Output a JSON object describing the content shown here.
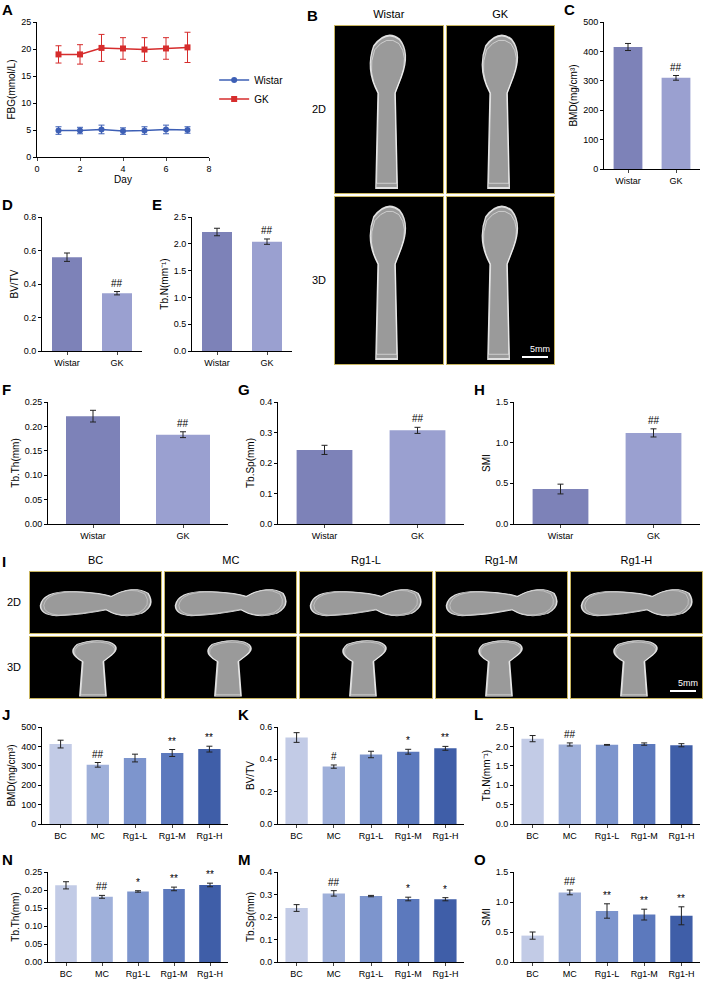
{
  "chart_data": [
    {
      "panel": "A",
      "type": "line",
      "x_label": "Day",
      "y_label": "FBG(mmol/L)",
      "x": [
        1,
        2,
        3,
        4,
        5,
        6,
        7
      ],
      "xlim": [
        0,
        8
      ],
      "xticks": [
        0,
        2,
        4,
        6,
        8
      ],
      "ylim": [
        0,
        25
      ],
      "yticks": [
        0,
        5,
        10,
        15,
        20,
        25
      ],
      "legend": "right",
      "series": [
        {
          "name": "Wistar",
          "color": "#3d5fb5",
          "marker": "circle",
          "values": [
            4.9,
            4.9,
            5.1,
            4.8,
            4.9,
            5.1,
            5.0
          ],
          "errors": [
            0.7,
            0.6,
            0.8,
            0.6,
            0.7,
            0.8,
            0.6
          ]
        },
        {
          "name": "GK",
          "color": "#d62d2d",
          "marker": "square",
          "values": [
            19.0,
            19.0,
            20.2,
            20.1,
            19.9,
            20.1,
            20.3
          ],
          "errors": [
            1.6,
            1.8,
            2.5,
            2.0,
            2.2,
            2.0,
            2.8
          ]
        }
      ]
    },
    {
      "panel": "C",
      "type": "bar",
      "y_label": "BMD(mg/cm³)",
      "categories": [
        "Wistar",
        "GK"
      ],
      "values": [
        415,
        310
      ],
      "errors": [
        12,
        8
      ],
      "colors": [
        "#7d82b8",
        "#9aa0d0"
      ],
      "ylim": [
        0,
        500
      ],
      "yticks": [
        0,
        100,
        200,
        300,
        400,
        500
      ],
      "annotations": [
        {
          "category": "GK",
          "text": "##"
        }
      ]
    },
    {
      "panel": "D",
      "type": "bar",
      "y_label": "BV/TV",
      "categories": [
        "Wistar",
        "GK"
      ],
      "values": [
        0.56,
        0.345
      ],
      "errors": [
        0.025,
        0.01
      ],
      "colors": [
        "#7d82b8",
        "#9aa0d0"
      ],
      "ylim": [
        0,
        0.8
      ],
      "yticks": [
        {
          "value": 0,
          "label": "0.0"
        },
        0.2,
        0.4,
        0.6,
        0.8
      ],
      "annotations": [
        {
          "category": "GK",
          "text": "##"
        }
      ]
    },
    {
      "panel": "E",
      "type": "bar",
      "y_label": "Tb.N(mm⁻¹)",
      "categories": [
        "Wistar",
        "GK"
      ],
      "values": [
        2.22,
        2.04
      ],
      "errors": [
        0.07,
        0.05
      ],
      "colors": [
        "#7d82b8",
        "#9aa0d0"
      ],
      "ylim": [
        0,
        2.5
      ],
      "yticks": [
        {
          "value": 0,
          "label": "0.0"
        },
        0.5,
        {
          "value": 1,
          "label": "1.0"
        },
        1.5,
        {
          "value": 2,
          "label": "2.0"
        },
        2.5
      ],
      "annotations": [
        {
          "category": "GK",
          "text": "##"
        }
      ]
    },
    {
      "panel": "F",
      "type": "bar",
      "y_label": "Tb.Th(mm)",
      "categories": [
        "Wistar",
        "GK"
      ],
      "values": [
        0.221,
        0.183
      ],
      "errors": [
        0.012,
        0.006
      ],
      "colors": [
        "#7d82b8",
        "#9aa0d0"
      ],
      "ylim": [
        0,
        0.25
      ],
      "yticks": [
        {
          "value": 0,
          "label": "0.00"
        },
        0.05,
        {
          "value": 0.1,
          "label": "0.10"
        },
        0.15,
        {
          "value": 0.2,
          "label": "0.20"
        },
        0.25
      ],
      "annotations": [
        {
          "category": "GK",
          "text": "##"
        }
      ]
    },
    {
      "panel": "G",
      "type": "bar",
      "y_label": "Tb.Sp(mm)",
      "categories": [
        "Wistar",
        "GK"
      ],
      "values": [
        0.243,
        0.307
      ],
      "errors": [
        0.015,
        0.01
      ],
      "colors": [
        "#7d82b8",
        "#9aa0d0"
      ],
      "ylim": [
        0,
        0.4
      ],
      "yticks": [
        {
          "value": 0,
          "label": "0.0"
        },
        0.1,
        0.2,
        0.3,
        0.4
      ],
      "annotations": [
        {
          "category": "GK",
          "text": "##"
        }
      ]
    },
    {
      "panel": "H",
      "type": "bar",
      "y_label": "SMI",
      "categories": [
        "Wistar",
        "GK"
      ],
      "values": [
        0.43,
        1.12
      ],
      "errors": [
        0.06,
        0.05
      ],
      "colors": [
        "#7d82b8",
        "#9aa0d0"
      ],
      "ylim": [
        0,
        1.5
      ],
      "yticks": [
        {
          "value": 0,
          "label": "0.0"
        },
        0.5,
        {
          "value": 1,
          "label": "1.0"
        },
        1.5
      ],
      "annotations": [
        {
          "category": "GK",
          "text": "##"
        }
      ]
    },
    {
      "panel": "J",
      "type": "bar",
      "y_label": "BMD(mg/cm³)",
      "categories": [
        "BC",
        "MC",
        "Rg1-L",
        "Rg1-M",
        "Rg1-H"
      ],
      "values": [
        412,
        305,
        340,
        366,
        386
      ],
      "errors": [
        20,
        12,
        20,
        18,
        15
      ],
      "colors": [
        "#c2cbe6",
        "#9fb0da",
        "#7d95cd",
        "#5c79bd",
        "#3f5ea8"
      ],
      "ylim": [
        0,
        500
      ],
      "yticks": [
        0,
        100,
        200,
        300,
        400,
        500
      ],
      "annotations": [
        {
          "category": "MC",
          "text": "##"
        },
        {
          "category": "Rg1-M",
          "text": "**"
        },
        {
          "category": "Rg1-H",
          "text": "**"
        }
      ]
    },
    {
      "panel": "K",
      "type": "bar",
      "y_label": "BV/TV",
      "categories": [
        "BC",
        "MC",
        "Rg1-L",
        "Rg1-M",
        "Rg1-H"
      ],
      "values": [
        0.535,
        0.355,
        0.43,
        0.447,
        0.468
      ],
      "errors": [
        0.03,
        0.01,
        0.02,
        0.015,
        0.012
      ],
      "colors": [
        "#c2cbe6",
        "#9fb0da",
        "#7d95cd",
        "#5c79bd",
        "#3f5ea8"
      ],
      "ylim": [
        0,
        0.6
      ],
      "yticks": [
        {
          "value": 0,
          "label": "0.0"
        },
        0.2,
        0.4,
        0.6
      ],
      "annotations": [
        {
          "category": "MC",
          "text": "#"
        },
        {
          "category": "Rg1-M",
          "text": "*"
        },
        {
          "category": "Rg1-H",
          "text": "**"
        }
      ]
    },
    {
      "panel": "L",
      "type": "bar",
      "y_label": "Tb.N(mm⁻¹)",
      "categories": [
        "BC",
        "MC",
        "Rg1-L",
        "Rg1-M",
        "Rg1-H"
      ],
      "values": [
        2.2,
        2.05,
        2.04,
        2.06,
        2.03
      ],
      "errors": [
        0.08,
        0.04,
        0.01,
        0.03,
        0.04
      ],
      "colors": [
        "#c2cbe6",
        "#9fb0da",
        "#7d95cd",
        "#5c79bd",
        "#3f5ea8"
      ],
      "ylim": [
        0,
        2.5
      ],
      "yticks": [
        {
          "value": 0,
          "label": "0.0"
        },
        0.5,
        {
          "value": 1,
          "label": "1.0"
        },
        1.5,
        {
          "value": 2,
          "label": "2.0"
        },
        2.5
      ],
      "annotations": [
        {
          "category": "MC",
          "text": "##"
        }
      ]
    },
    {
      "panel": "N",
      "type": "bar",
      "y_label": "Tb.Th(mm)",
      "categories": [
        "BC",
        "MC",
        "Rg1-L",
        "Rg1-M",
        "Rg1-H"
      ],
      "values": [
        0.213,
        0.181,
        0.196,
        0.203,
        0.214
      ],
      "errors": [
        0.01,
        0.004,
        0.002,
        0.005,
        0.005
      ],
      "colors": [
        "#c2cbe6",
        "#9fb0da",
        "#7d95cd",
        "#5c79bd",
        "#3f5ea8"
      ],
      "ylim": [
        0,
        0.25
      ],
      "yticks": [
        {
          "value": 0,
          "label": "0.00"
        },
        0.05,
        {
          "value": 0.1,
          "label": "0.10"
        },
        0.15,
        {
          "value": 0.2,
          "label": "0.20"
        },
        0.25
      ],
      "annotations": [
        {
          "category": "MC",
          "text": "##"
        },
        {
          "category": "Rg1-L",
          "text": "*"
        },
        {
          "category": "Rg1-M",
          "text": "**"
        },
        {
          "category": "Rg1-H",
          "text": "**"
        }
      ]
    },
    {
      "panel": "M",
      "type": "bar",
      "y_label": "Tb.Sp(mm)",
      "categories": [
        "BC",
        "MC",
        "Rg1-L",
        "Rg1-M",
        "Rg1-H"
      ],
      "values": [
        0.24,
        0.305,
        0.293,
        0.28,
        0.279
      ],
      "errors": [
        0.015,
        0.012,
        0.003,
        0.008,
        0.007
      ],
      "colors": [
        "#c2cbe6",
        "#9fb0da",
        "#7d95cd",
        "#5c79bd",
        "#3f5ea8"
      ],
      "ylim": [
        0,
        0.4
      ],
      "yticks": [
        {
          "value": 0,
          "label": "0.0"
        },
        0.1,
        0.2,
        0.3,
        0.4
      ],
      "annotations": [
        {
          "category": "MC",
          "text": "##"
        },
        {
          "category": "Rg1-M",
          "text": "*"
        },
        {
          "category": "Rg1-H",
          "text": "*"
        }
      ]
    },
    {
      "panel": "O",
      "type": "bar",
      "y_label": "SMI",
      "categories": [
        "BC",
        "MC",
        "Rg1-L",
        "Rg1-M",
        "Rg1-H"
      ],
      "values": [
        0.44,
        1.16,
        0.85,
        0.79,
        0.77
      ],
      "errors": [
        0.06,
        0.04,
        0.12,
        0.09,
        0.15
      ],
      "colors": [
        "#c2cbe6",
        "#9fb0da",
        "#7d95cd",
        "#5c79bd",
        "#3f5ea8"
      ],
      "ylim": [
        0,
        1.5
      ],
      "yticks": [
        {
          "value": 0,
          "label": "0.0"
        },
        0.5,
        {
          "value": 1,
          "label": "1.0"
        },
        1.5
      ],
      "annotations": [
        {
          "category": "MC",
          "text": "##"
        },
        {
          "category": "Rg1-L",
          "text": "**"
        },
        {
          "category": "Rg1-M",
          "text": "**"
        },
        {
          "category": "Rg1-H",
          "text": "**"
        }
      ]
    }
  ],
  "image_panels": [
    {
      "panel": "B",
      "columns": [
        "Wistar",
        "GK"
      ],
      "rows": [
        "2D",
        "3D"
      ],
      "scale_bar": "5mm"
    },
    {
      "panel": "I",
      "columns": [
        "BC",
        "MC",
        "Rg1-L",
        "Rg1-M",
        "Rg1-H"
      ],
      "rows": [
        "2D",
        "3D"
      ],
      "scale_bar": "5mm"
    }
  ]
}
